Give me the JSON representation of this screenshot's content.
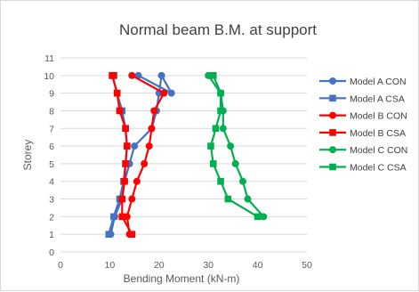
{
  "chart_data": {
    "type": "line",
    "title": "Normal beam B.M. at support",
    "xlabel": "Bending Moment (kN-m)",
    "ylabel": "Storey",
    "xlim": [
      0,
      50
    ],
    "ylim": [
      0,
      11
    ],
    "x_ticks": [
      "0",
      "10",
      "20",
      "30",
      "40",
      "50"
    ],
    "y_ticks": [
      "0",
      "1",
      "2",
      "3",
      "4",
      "5",
      "6",
      "7",
      "8",
      "9",
      "10",
      "11"
    ],
    "grid": "horizontal",
    "legend_position": "right",
    "series": [
      {
        "name": "Model A CON",
        "color": "#4472C4",
        "marker": "circle",
        "x": [
          10.2,
          11.0,
          12.5,
          13.0,
          14.0,
          15.0,
          18.5,
          19.5,
          20.0,
          20.5,
          22.5,
          15.8
        ],
        "y": [
          1,
          2,
          3,
          4,
          5,
          6,
          7,
          8,
          9,
          10,
          9,
          10
        ]
      },
      {
        "name": "Model A CSA",
        "color": "#4472C4",
        "marker": "square",
        "x": [
          9.8,
          10.8,
          12.0,
          12.8,
          13.2,
          13.5,
          13.2,
          12.5,
          11.5,
          10.5,
          10.8
        ],
        "y": [
          1,
          2,
          3,
          4,
          5,
          6,
          7,
          8,
          9,
          10,
          10
        ]
      },
      {
        "name": "Model B CON",
        "color": "#FF0000",
        "marker": "circle",
        "x": [
          14.0,
          13.5,
          14.5,
          15.5,
          17.0,
          18.0,
          18.5,
          19.0,
          21.0,
          14.5
        ],
        "y": [
          1,
          2,
          3,
          4,
          5,
          6,
          7,
          8,
          9,
          10
        ]
      },
      {
        "name": "Model B CSA",
        "color": "#FF0000",
        "marker": "square",
        "x": [
          14.5,
          12.5,
          12.5,
          13.0,
          13.2,
          13.5,
          13.2,
          12.0,
          11.5,
          10.5,
          10.8
        ],
        "y": [
          1,
          2,
          3,
          4,
          5,
          6,
          7,
          8,
          9,
          10,
          10
        ]
      },
      {
        "name": "Model C CON",
        "color": "#00B050",
        "marker": "circle",
        "x": [
          41.2,
          38.0,
          37.0,
          35.5,
          34.5,
          33.0,
          33.0,
          32.5,
          30.0
        ],
        "y": [
          2,
          3,
          4,
          5,
          6,
          7,
          8,
          9,
          10
        ]
      },
      {
        "name": "Model C CSA",
        "color": "#00B050",
        "marker": "square",
        "x": [
          40.0,
          34.0,
          32.5,
          31.0,
          30.5,
          31.5,
          32.5,
          32.5,
          31.0
        ],
        "y": [
          2,
          3,
          4,
          5,
          6,
          7,
          8,
          9,
          10
        ]
      }
    ]
  }
}
